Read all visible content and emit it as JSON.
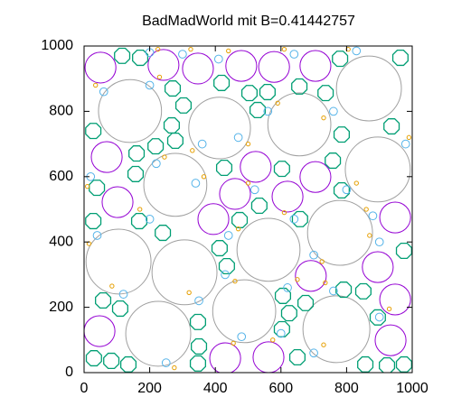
{
  "chart_data": {
    "type": "scatter",
    "title": "BadMadWorld mit B=0.41442757",
    "xlim": [
      0,
      1000
    ],
    "ylim": [
      0,
      1000
    ],
    "xticks": [
      0,
      200,
      400,
      600,
      800,
      1000
    ],
    "yticks": [
      0,
      200,
      400,
      600,
      800,
      1000
    ],
    "series": [
      {
        "color": "#a0a0a0",
        "marker": "circle",
        "x": [
          140,
          413,
          656,
          868,
          895,
          278,
          105,
          306,
          562,
          780,
          488,
          226,
          769
        ],
        "y": [
          801,
          749,
          760,
          870,
          622,
          575,
          340,
          307,
          376,
          428,
          188,
          119,
          133
        ],
        "r": [
          96,
          94,
          96,
          99,
          99,
          96,
          99,
          99,
          96,
          99,
          96,
          99,
          102
        ]
      },
      {
        "color": "#9400d3",
        "marker": "circle",
        "x": [
          50,
          242,
          347,
          479,
          579,
          705,
          69,
          102,
          523,
          460,
          620,
          705,
          394,
          948,
          691,
          895,
          948,
          47,
          934,
          430,
          562
        ],
        "y": [
          934,
          942,
          931,
          939,
          936,
          939,
          660,
          522,
          630,
          547,
          539,
          599,
          470,
          475,
          296,
          323,
          224,
          127,
          99,
          44,
          47
        ],
        "r": [
          47,
          47,
          47,
          47,
          47,
          47,
          47,
          47,
          47,
          47,
          47,
          47,
          47,
          47,
          47,
          47,
          47,
          47,
          47,
          47,
          47
        ]
      },
      {
        "color": "#009e73",
        "marker": "octagon",
        "x": [
          116,
          171,
          780,
          964,
          419,
          270,
          504,
          559,
          656,
          736,
          303,
          529,
          267,
          28,
          278,
          785,
          937,
          218,
          160,
          157,
          758,
          427,
          603,
          39,
          785,
          534,
          28,
          168,
          240,
          474,
          658,
          413,
          435,
          975,
          58,
          110,
          606,
          675,
          791,
          851,
          625,
          895,
          347,
          603,
          350,
          30,
          83,
          135,
          347,
          650,
          857,
          923,
          975
        ],
        "y": [
          970,
          964,
          961,
          964,
          887,
          870,
          856,
          859,
          876,
          856,
          818,
          804,
          757,
          740,
          710,
          729,
          754,
          693,
          671,
          608,
          649,
          627,
          624,
          566,
          558,
          511,
          464,
          464,
          428,
          467,
          470,
          381,
          326,
          373,
          221,
          196,
          235,
          213,
          254,
          249,
          182,
          169,
          155,
          133,
          80,
          44,
          36,
          25,
          28,
          47,
          25,
          22,
          25
        ],
        "r": [
          25,
          25,
          25,
          25,
          25,
          25,
          25,
          25,
          25,
          25,
          25,
          25,
          25,
          25,
          25,
          25,
          25,
          25,
          25,
          25,
          25,
          25,
          25,
          25,
          25,
          25,
          25,
          25,
          25,
          25,
          25,
          25,
          25,
          25,
          25,
          25,
          25,
          25,
          25,
          25,
          25,
          25,
          25,
          25,
          25,
          25,
          25,
          25,
          25,
          25,
          25,
          25,
          25
        ]
      },
      {
        "color": "#56b4e9",
        "marker": "circle",
        "x": [
          200,
          300,
          410,
          640,
          830,
          200,
          560,
          760,
          220,
          360,
          470,
          800,
          640,
          440,
          200,
          40,
          700,
          880,
          620,
          760,
          430,
          350,
          120,
          600,
          900,
          250,
          480,
          700,
          60,
          20,
          980,
          520,
          340,
          900
        ],
        "y": [
          980,
          975,
          960,
          975,
          985,
          880,
          800,
          800,
          640,
          700,
          720,
          560,
          470,
          420,
          470,
          420,
          360,
          480,
          260,
          250,
          300,
          220,
          240,
          120,
          170,
          30,
          110,
          60,
          860,
          600,
          700,
          560,
          580,
          400
        ],
        "r": [
          12,
          12,
          12,
          12,
          12,
          12,
          12,
          12,
          12,
          12,
          12,
          12,
          12,
          12,
          12,
          12,
          12,
          12,
          12,
          12,
          12,
          12,
          12,
          12,
          12,
          12,
          12,
          12,
          12,
          12,
          12,
          12,
          12,
          12
        ]
      },
      {
        "color": "#e69f00",
        "marker": "circle",
        "x": [
          225,
          325,
          440,
          610,
          805,
          230,
          590,
          730,
          245,
          330,
          500,
          830,
          610,
          470,
          170,
          15,
          725,
          860,
          650,
          735,
          460,
          320,
          85,
          575,
          930,
          275,
          455,
          730,
          35,
          10,
          990,
          500,
          365,
          870
        ],
        "y": [
          990,
          990,
          985,
          990,
          990,
          905,
          825,
          780,
          660,
          680,
          700,
          580,
          490,
          440,
          500,
          395,
          340,
          500,
          285,
          275,
          280,
          245,
          265,
          100,
          195,
          15,
          90,
          85,
          880,
          570,
          720,
          580,
          600,
          420
        ],
        "r": [
          6,
          6,
          6,
          6,
          6,
          6,
          6,
          6,
          6,
          6,
          6,
          6,
          6,
          6,
          6,
          6,
          6,
          6,
          6,
          6,
          6,
          6,
          6,
          6,
          6,
          6,
          6,
          6,
          6,
          6,
          6,
          6,
          6,
          6
        ]
      }
    ]
  }
}
